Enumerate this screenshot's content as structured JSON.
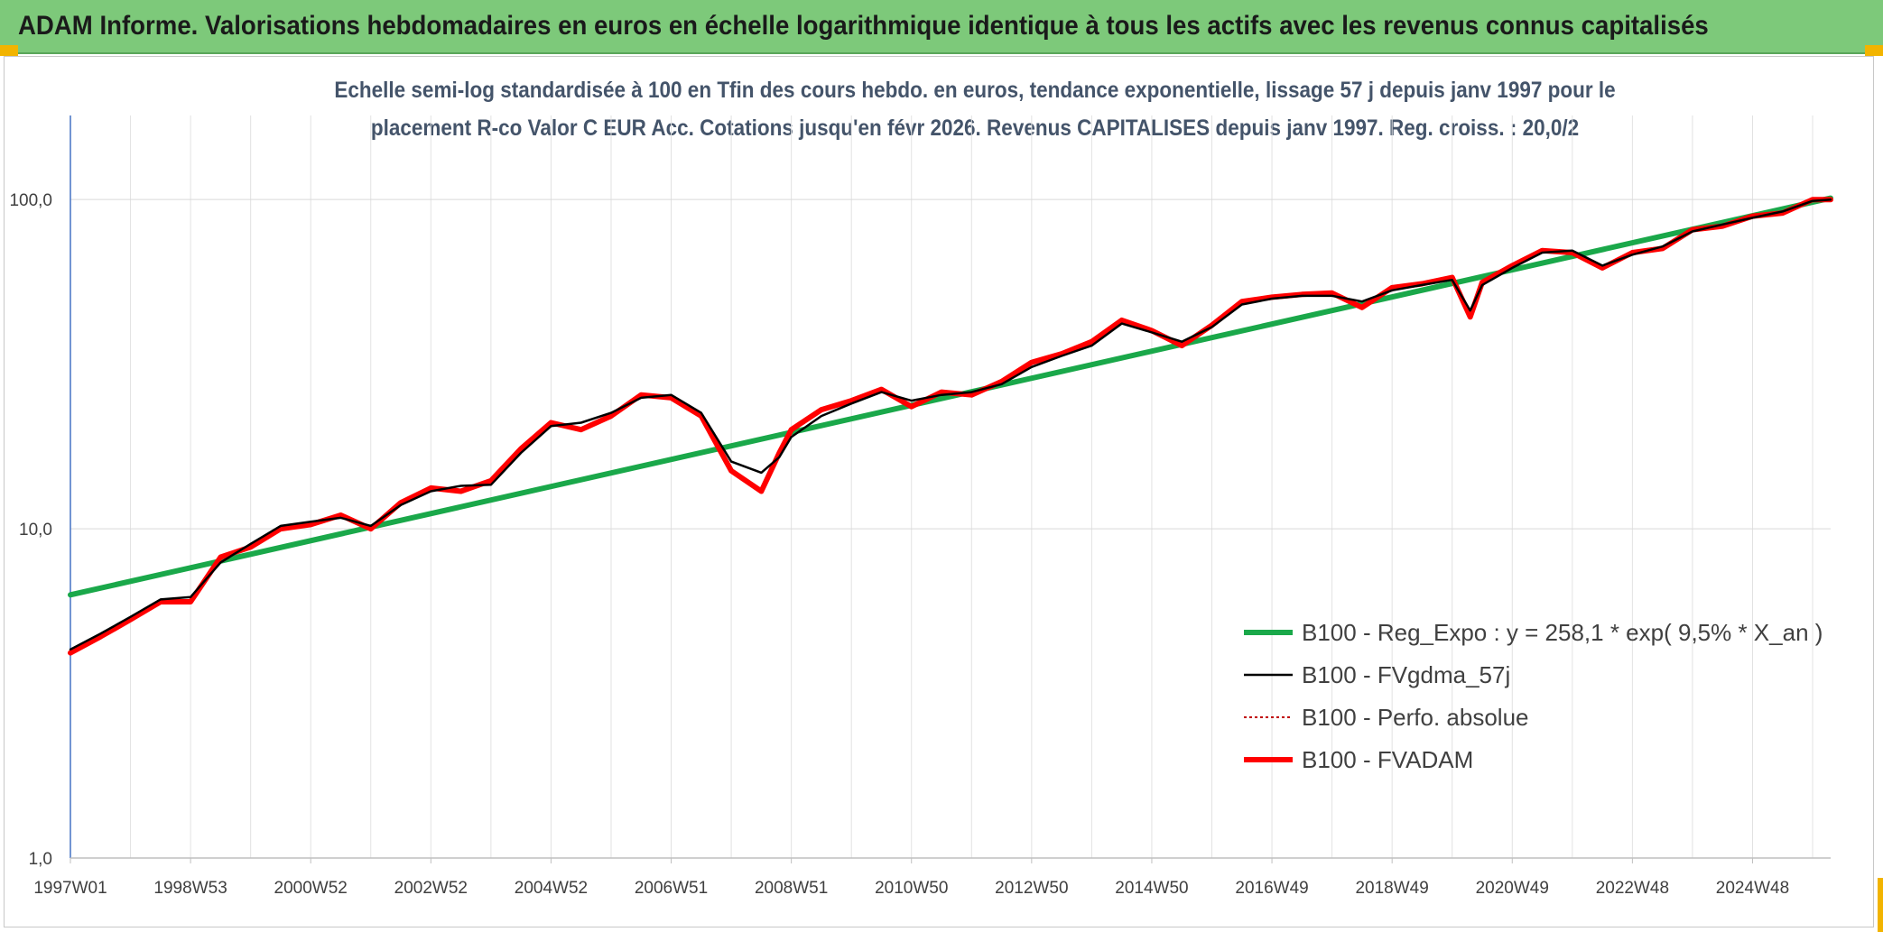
{
  "header": {
    "title": "ADAM Informe. Valorisations hebdomadaires en euros en échelle logarithmique identique à tous les actifs avec les revenus connus capitalisés"
  },
  "chart_data": {
    "type": "line",
    "title": "Echelle semi-log standardisée à 100 en Tfin des cours hebdo. en euros, tendance exponentielle, lissage 57 j depuis janv 1997 pour le",
    "subtitle": "placement R-co Valor C EUR Acc. Cotations jusqu'en févr 2026. Revenus CAPITALISES depuis janv 1997. Reg. croiss. : 20,0/2",
    "xlabel": "",
    "ylabel": "",
    "y_scale": "log",
    "ylim": [
      1,
      180
    ],
    "xlim": [
      1997.0,
      2026.3
    ],
    "grid": true,
    "legend_position": "right",
    "y_ticks": [
      {
        "value": 1,
        "label": "1,0"
      },
      {
        "value": 10,
        "label": "10,0"
      },
      {
        "value": 100,
        "label": "100,0"
      }
    ],
    "x_ticks": [
      {
        "value": 1997.0,
        "label": "1997W01"
      },
      {
        "value": 1999.0,
        "label": "1998W53"
      },
      {
        "value": 2001.0,
        "label": "2000W52"
      },
      {
        "value": 2003.0,
        "label": "2002W52"
      },
      {
        "value": 2005.0,
        "label": "2004W52"
      },
      {
        "value": 2007.0,
        "label": "2006W51"
      },
      {
        "value": 2009.0,
        "label": "2008W51"
      },
      {
        "value": 2011.0,
        "label": "2010W50"
      },
      {
        "value": 2013.0,
        "label": "2012W50"
      },
      {
        "value": 2015.0,
        "label": "2014W50"
      },
      {
        "value": 2017.0,
        "label": "2016W49"
      },
      {
        "value": 2019.0,
        "label": "2018W49"
      },
      {
        "value": 2021.0,
        "label": "2020W49"
      },
      {
        "value": 2023.0,
        "label": "2022W48"
      },
      {
        "value": 2025.0,
        "label": "2024W48"
      }
    ],
    "series": [
      {
        "name": "B100 - Reg_Expo : y = 258,1 * exp( 9,5% *  X_an )",
        "color": "#1aa84a",
        "style": "solid-thick",
        "x": [
          1997.0,
          2026.3
        ],
        "values": [
          6.3,
          101.0
        ]
      },
      {
        "name": "B100 - FVgdma_57j",
        "color": "#000000",
        "style": "solid-thin",
        "x": [
          1997.0,
          1997.5,
          1998.0,
          1998.5,
          1999.0,
          1999.5,
          2000.0,
          2000.5,
          2001.0,
          2001.5,
          2002.0,
          2002.5,
          2003.0,
          2003.5,
          2004.0,
          2004.5,
          2005.0,
          2005.5,
          2006.0,
          2006.5,
          2007.0,
          2007.5,
          2008.0,
          2008.5,
          2008.8,
          2009.0,
          2009.5,
          2010.0,
          2010.5,
          2011.0,
          2011.5,
          2012.0,
          2012.5,
          2013.0,
          2013.5,
          2014.0,
          2014.5,
          2015.0,
          2015.5,
          2016.0,
          2016.5,
          2017.0,
          2017.5,
          2018.0,
          2018.5,
          2019.0,
          2019.5,
          2020.0,
          2020.3,
          2020.5,
          2021.0,
          2021.5,
          2022.0,
          2022.5,
          2023.0,
          2023.5,
          2024.0,
          2024.5,
          2025.0,
          2025.5,
          2026.0,
          2026.3
        ],
        "values": [
          4.3,
          4.8,
          5.4,
          6.1,
          6.2,
          7.9,
          9.0,
          10.2,
          10.5,
          10.8,
          10.2,
          11.8,
          13.0,
          13.5,
          13.6,
          17.0,
          20.5,
          21.0,
          22.5,
          25.0,
          25.5,
          22.5,
          16.0,
          14.8,
          16.5,
          19.0,
          22.0,
          24.0,
          26.0,
          24.5,
          25.5,
          26.0,
          27.5,
          31.0,
          33.5,
          36.0,
          42.0,
          39.5,
          37.0,
          41.0,
          48.0,
          50.0,
          51.0,
          51.0,
          49.0,
          53.0,
          55.0,
          57.0,
          46.0,
          55.0,
          62.0,
          69.0,
          70.0,
          63.0,
          68.0,
          72.0,
          80.0,
          84.0,
          88.0,
          92.0,
          99.0,
          100.0
        ]
      },
      {
        "name": "B100 - Perfo. absolue",
        "color": "#c00000",
        "style": "dotted",
        "x": [],
        "values": []
      },
      {
        "name": "B100 - FVADAM",
        "color": "#ff0000",
        "style": "solid-thick",
        "x": [
          1997.0,
          1997.5,
          1998.0,
          1998.5,
          1999.0,
          1999.5,
          2000.0,
          2000.5,
          2001.0,
          2001.5,
          2002.0,
          2002.5,
          2003.0,
          2003.5,
          2004.0,
          2004.5,
          2005.0,
          2005.5,
          2006.0,
          2006.5,
          2007.0,
          2007.5,
          2008.0,
          2008.5,
          2008.8,
          2009.0,
          2009.5,
          2010.0,
          2010.5,
          2011.0,
          2011.5,
          2012.0,
          2012.5,
          2013.0,
          2013.5,
          2014.0,
          2014.5,
          2015.0,
          2015.5,
          2016.0,
          2016.5,
          2017.0,
          2017.5,
          2018.0,
          2018.5,
          2019.0,
          2019.5,
          2020.0,
          2020.3,
          2020.5,
          2021.0,
          2021.5,
          2022.0,
          2022.5,
          2023.0,
          2023.5,
          2024.0,
          2024.5,
          2025.0,
          2025.5,
          2026.0,
          2026.3
        ],
        "values": [
          4.2,
          4.7,
          5.3,
          6.0,
          6.0,
          8.2,
          8.8,
          10.0,
          10.3,
          11.0,
          10.0,
          12.0,
          13.3,
          13.0,
          14.0,
          17.5,
          21.0,
          20.0,
          22.0,
          25.5,
          25.0,
          22.0,
          15.0,
          13.0,
          17.0,
          20.0,
          23.0,
          24.5,
          26.5,
          23.5,
          26.0,
          25.5,
          28.0,
          32.0,
          34.0,
          37.0,
          43.0,
          40.0,
          36.0,
          41.5,
          49.0,
          50.5,
          51.5,
          52.0,
          47.0,
          54.0,
          55.5,
          58.0,
          44.0,
          56.0,
          63.0,
          70.0,
          69.0,
          62.0,
          69.0,
          71.0,
          81.0,
          83.0,
          89.0,
          91.0,
          100.0,
          100.0
        ]
      }
    ]
  }
}
